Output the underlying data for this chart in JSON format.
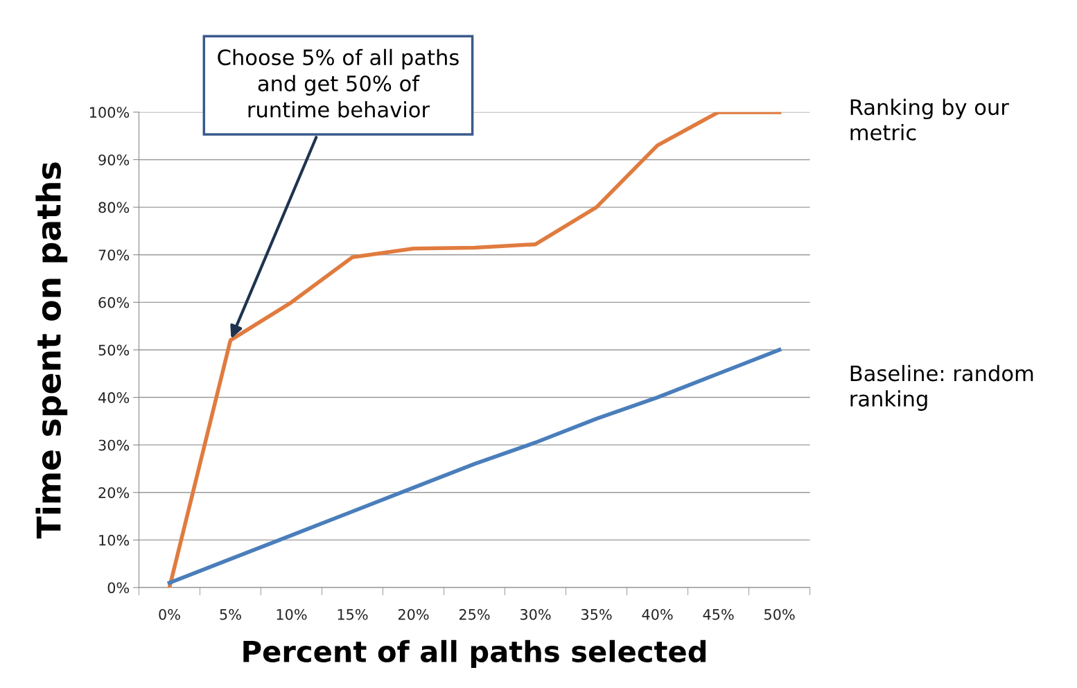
{
  "chart_data": {
    "type": "line",
    "xlabel": "Percent of all paths selected",
    "ylabel": "Time spent on paths",
    "categories": [
      "0%",
      "5%",
      "10%",
      "15%",
      "20%",
      "25%",
      "30%",
      "35%",
      "40%",
      "45%",
      "50%"
    ],
    "series": [
      {
        "name": "Ranking by our metric",
        "color": "#e07b3f",
        "values": [
          0,
          52,
          60,
          69.5,
          71.3,
          71.5,
          72.2,
          80,
          93,
          100,
          100
        ]
      },
      {
        "name": "Baseline: random ranking",
        "color": "#4a7ebb",
        "values": [
          1,
          6,
          11,
          16,
          21,
          26,
          30.5,
          35.5,
          40,
          45,
          50
        ]
      }
    ],
    "ylim": [
      0,
      100
    ],
    "yticks": [
      {
        "value": 0,
        "label": "0%"
      },
      {
        "value": 10,
        "label": "10%"
      },
      {
        "value": 20,
        "label": "20%"
      },
      {
        "value": 30,
        "label": "30%"
      },
      {
        "value": 40,
        "label": "40%"
      },
      {
        "value": 50,
        "label": "50%"
      },
      {
        "value": 60,
        "label": "60%"
      },
      {
        "value": 70,
        "label": "70%"
      },
      {
        "value": 80,
        "label": "80%"
      },
      {
        "value": 90,
        "label": "90%"
      },
      {
        "value": 100,
        "label": "100%"
      }
    ],
    "grid": "y",
    "legend": "right",
    "marker": "none",
    "line_style": "solid",
    "annotations": [
      {
        "text": "Choose 5% of all paths\nand get 50% of\nruntime behavior",
        "x": "5%",
        "y": 52
      }
    ]
  }
}
